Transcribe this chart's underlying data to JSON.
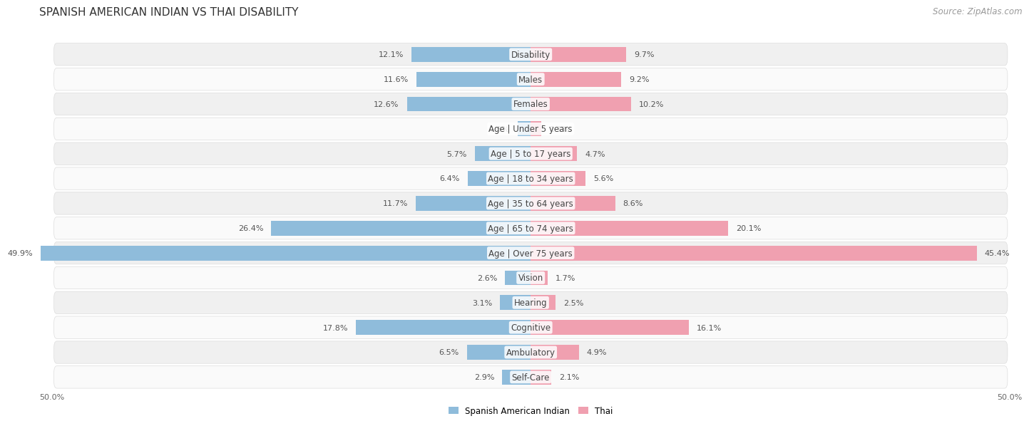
{
  "title": "SPANISH AMERICAN INDIAN VS THAI DISABILITY",
  "source": "Source: ZipAtlas.com",
  "categories": [
    "Disability",
    "Males",
    "Females",
    "Age | Under 5 years",
    "Age | 5 to 17 years",
    "Age | 18 to 34 years",
    "Age | 35 to 64 years",
    "Age | 65 to 74 years",
    "Age | Over 75 years",
    "Vision",
    "Hearing",
    "Cognitive",
    "Ambulatory",
    "Self-Care"
  ],
  "left_values": [
    12.1,
    11.6,
    12.6,
    1.3,
    5.7,
    6.4,
    11.7,
    26.4,
    49.9,
    2.6,
    3.1,
    17.8,
    6.5,
    2.9
  ],
  "right_values": [
    9.7,
    9.2,
    10.2,
    1.1,
    4.7,
    5.6,
    8.6,
    20.1,
    45.4,
    1.7,
    2.5,
    16.1,
    4.9,
    2.1
  ],
  "left_color": "#8FBCDB",
  "right_color": "#F0A0B0",
  "left_label": "Spanish American Indian",
  "right_label": "Thai",
  "axis_max": 50.0,
  "bg_color": "#ffffff",
  "row_even_color": "#f0f0f0",
  "row_odd_color": "#fafafa",
  "title_fontsize": 11,
  "label_fontsize": 8.5,
  "value_fontsize": 8,
  "source_fontsize": 8.5
}
